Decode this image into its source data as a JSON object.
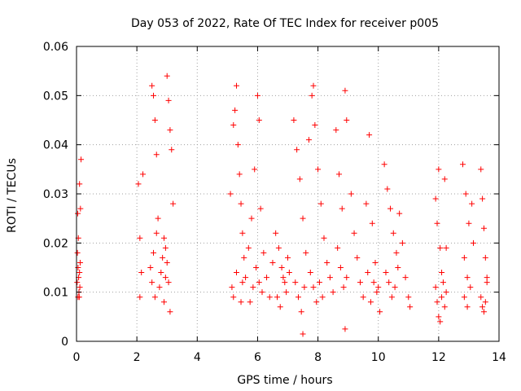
{
  "chart_data": {
    "type": "scatter",
    "title": "Day 053 of 2022, Rate Of TEC Index for receiver p005",
    "xlabel": "GPS time / hours",
    "ylabel": "ROTI / TECUs",
    "xlim": [
      0,
      14
    ],
    "ylim": [
      0,
      0.06
    ],
    "xticks": [
      0,
      2,
      4,
      6,
      8,
      10,
      12,
      14
    ],
    "yticks": [
      0,
      0.01,
      0.02,
      0.03,
      0.04,
      0.05,
      0.06
    ],
    "xtick_labels": [
      "0",
      "2",
      "4",
      "6",
      "8",
      "10",
      "12",
      "14"
    ],
    "ytick_labels": [
      "0",
      "0.01",
      "0.02",
      "0.03",
      "0.04",
      "0.05",
      "0.06"
    ],
    "grid": true,
    "marker": "+",
    "color": "#ff0000",
    "series": [
      {
        "name": "ROTI",
        "points": [
          [
            0.02,
            0.012
          ],
          [
            0.05,
            0.015
          ],
          [
            0.08,
            0.01
          ],
          [
            0.1,
            0.014
          ],
          [
            0.03,
            0.018
          ],
          [
            0.06,
            0.021
          ],
          [
            0.09,
            0.009
          ],
          [
            0.04,
            0.026
          ],
          [
            0.07,
            0.013
          ],
          [
            0.12,
            0.016
          ],
          [
            0.1,
            0.032
          ],
          [
            0.15,
            0.037
          ],
          [
            0.13,
            0.027
          ],
          [
            0.11,
            0.011
          ],
          [
            0.05,
            0.009
          ],
          [
            2.05,
            0.032
          ],
          [
            2.1,
            0.021
          ],
          [
            2.15,
            0.014
          ],
          [
            2.1,
            0.009
          ],
          [
            2.2,
            0.034
          ],
          [
            2.45,
            0.015
          ],
          [
            2.5,
            0.012
          ],
          [
            2.55,
            0.018
          ],
          [
            2.6,
            0.009
          ],
          [
            2.65,
            0.022
          ],
          [
            2.5,
            0.052
          ],
          [
            2.55,
            0.05
          ],
          [
            2.6,
            0.045
          ],
          [
            2.65,
            0.038
          ],
          [
            2.7,
            0.025
          ],
          [
            2.75,
            0.011
          ],
          [
            2.8,
            0.014
          ],
          [
            2.85,
            0.017
          ],
          [
            2.9,
            0.008
          ],
          [
            2.95,
            0.013
          ],
          [
            3.0,
            0.054
          ],
          [
            3.05,
            0.049
          ],
          [
            3.1,
            0.043
          ],
          [
            3.15,
            0.039
          ],
          [
            3.2,
            0.028
          ],
          [
            2.9,
            0.021
          ],
          [
            2.95,
            0.019
          ],
          [
            3.0,
            0.016
          ],
          [
            3.05,
            0.012
          ],
          [
            3.1,
            0.006
          ],
          [
            5.1,
            0.03
          ],
          [
            5.2,
            0.044
          ],
          [
            5.3,
            0.052
          ],
          [
            5.25,
            0.047
          ],
          [
            5.35,
            0.04
          ],
          [
            5.4,
            0.034
          ],
          [
            5.45,
            0.028
          ],
          [
            5.5,
            0.022
          ],
          [
            5.55,
            0.017
          ],
          [
            5.6,
            0.013
          ],
          [
            5.15,
            0.011
          ],
          [
            5.2,
            0.009
          ],
          [
            5.3,
            0.014
          ],
          [
            5.45,
            0.008
          ],
          [
            5.5,
            0.012
          ],
          [
            5.7,
            0.019
          ],
          [
            5.8,
            0.025
          ],
          [
            5.9,
            0.035
          ],
          [
            6.0,
            0.05
          ],
          [
            6.05,
            0.045
          ],
          [
            6.1,
            0.027
          ],
          [
            6.2,
            0.018
          ],
          [
            6.3,
            0.013
          ],
          [
            6.4,
            0.009
          ],
          [
            6.5,
            0.016
          ],
          [
            5.75,
            0.008
          ],
          [
            5.85,
            0.011
          ],
          [
            5.95,
            0.015
          ],
          [
            6.05,
            0.012
          ],
          [
            6.15,
            0.01
          ],
          [
            6.6,
            0.022
          ],
          [
            6.7,
            0.019
          ],
          [
            6.8,
            0.015
          ],
          [
            6.9,
            0.012
          ],
          [
            7.0,
            0.017
          ],
          [
            6.65,
            0.009
          ],
          [
            6.75,
            0.007
          ],
          [
            6.85,
            0.013
          ],
          [
            6.95,
            0.01
          ],
          [
            7.05,
            0.014
          ],
          [
            7.2,
            0.045
          ],
          [
            7.3,
            0.039
          ],
          [
            7.4,
            0.033
          ],
          [
            7.5,
            0.025
          ],
          [
            7.6,
            0.018
          ],
          [
            7.25,
            0.012
          ],
          [
            7.35,
            0.009
          ],
          [
            7.45,
            0.006
          ],
          [
            7.5,
            0.0015
          ],
          [
            7.55,
            0.011
          ],
          [
            7.7,
            0.041
          ],
          [
            7.8,
            0.05
          ],
          [
            7.85,
            0.052
          ],
          [
            7.9,
            0.044
          ],
          [
            8.0,
            0.035
          ],
          [
            8.1,
            0.028
          ],
          [
            8.2,
            0.021
          ],
          [
            8.3,
            0.016
          ],
          [
            8.4,
            0.013
          ],
          [
            8.5,
            0.01
          ],
          [
            7.75,
            0.014
          ],
          [
            7.85,
            0.011
          ],
          [
            7.95,
            0.008
          ],
          [
            8.05,
            0.012
          ],
          [
            8.15,
            0.009
          ],
          [
            8.6,
            0.043
          ],
          [
            8.7,
            0.034
          ],
          [
            8.8,
            0.027
          ],
          [
            8.9,
            0.051
          ],
          [
            8.95,
            0.045
          ],
          [
            8.65,
            0.019
          ],
          [
            8.75,
            0.015
          ],
          [
            8.85,
            0.011
          ],
          [
            8.9,
            0.0025
          ],
          [
            8.95,
            0.013
          ],
          [
            9.1,
            0.03
          ],
          [
            9.2,
            0.022
          ],
          [
            9.3,
            0.017
          ],
          [
            9.4,
            0.012
          ],
          [
            9.5,
            0.009
          ],
          [
            9.6,
            0.028
          ],
          [
            9.7,
            0.042
          ],
          [
            9.8,
            0.024
          ],
          [
            9.9,
            0.016
          ],
          [
            10.0,
            0.011
          ],
          [
            9.65,
            0.014
          ],
          [
            9.75,
            0.008
          ],
          [
            9.85,
            0.012
          ],
          [
            9.95,
            0.01
          ],
          [
            10.05,
            0.006
          ],
          [
            10.2,
            0.036
          ],
          [
            10.3,
            0.031
          ],
          [
            10.4,
            0.027
          ],
          [
            10.5,
            0.022
          ],
          [
            10.6,
            0.018
          ],
          [
            10.25,
            0.014
          ],
          [
            10.35,
            0.012
          ],
          [
            10.45,
            0.009
          ],
          [
            10.55,
            0.011
          ],
          [
            10.65,
            0.015
          ],
          [
            10.7,
            0.026
          ],
          [
            10.8,
            0.02
          ],
          [
            10.9,
            0.013
          ],
          [
            11.0,
            0.009
          ],
          [
            11.05,
            0.007
          ],
          [
            11.9,
            0.029
          ],
          [
            11.95,
            0.024
          ],
          [
            12.0,
            0.035
          ],
          [
            12.05,
            0.019
          ],
          [
            12.1,
            0.014
          ],
          [
            11.9,
            0.011
          ],
          [
            11.95,
            0.008
          ],
          [
            12.0,
            0.005
          ],
          [
            12.05,
            0.004
          ],
          [
            12.1,
            0.009
          ],
          [
            12.2,
            0.033
          ],
          [
            12.25,
            0.019
          ],
          [
            12.15,
            0.012
          ],
          [
            12.2,
            0.007
          ],
          [
            12.25,
            0.01
          ],
          [
            12.8,
            0.036
          ],
          [
            12.9,
            0.03
          ],
          [
            13.0,
            0.024
          ],
          [
            12.85,
            0.017
          ],
          [
            12.95,
            0.013
          ],
          [
            12.85,
            0.009
          ],
          [
            12.95,
            0.007
          ],
          [
            13.05,
            0.011
          ],
          [
            13.1,
            0.028
          ],
          [
            13.15,
            0.02
          ],
          [
            13.4,
            0.035
          ],
          [
            13.45,
            0.029
          ],
          [
            13.5,
            0.023
          ],
          [
            13.55,
            0.017
          ],
          [
            13.6,
            0.012
          ],
          [
            13.4,
            0.009
          ],
          [
            13.45,
            0.007
          ],
          [
            13.5,
            0.006
          ],
          [
            13.55,
            0.008
          ],
          [
            13.6,
            0.013
          ]
        ]
      }
    ]
  }
}
